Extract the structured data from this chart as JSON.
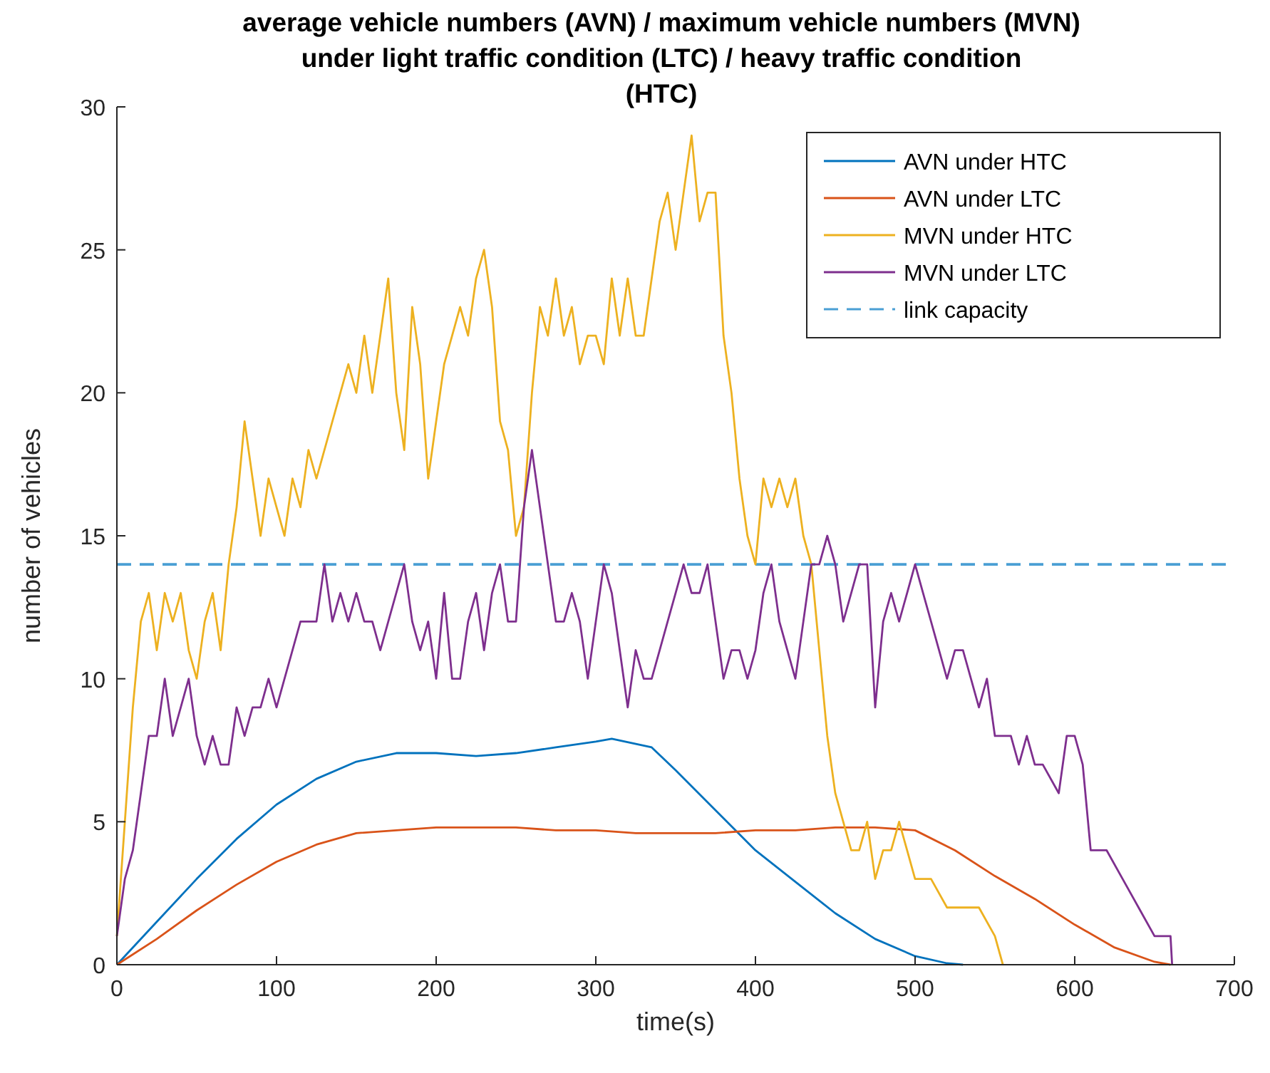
{
  "chart_data": {
    "type": "line",
    "title": "average vehicle numbers (AVN) / maximum vehicle numbers (MVN) under light traffic condition (LTC) / heavy traffic condition (HTC)",
    "xlabel": "time(s)",
    "ylabel": "number of vehicles",
    "xlim": [
      0,
      700
    ],
    "xticks": [
      0,
      100,
      200,
      300,
      400,
      500,
      600,
      700
    ],
    "ylim": [
      0,
      30
    ],
    "yticks": [
      0,
      5,
      10,
      15,
      20,
      25,
      30
    ],
    "grid": false,
    "legend": "top right",
    "line_style": "solid",
    "marker": "none",
    "ref_lines": [
      {
        "axis": "y",
        "value": 14,
        "label": "link capacity",
        "color": "#4a9fd4",
        "line_style": "dashed"
      }
    ],
    "series": [
      {
        "name": "AVN under HTC",
        "color": "#0072bd",
        "x": [
          0,
          25,
          50,
          75,
          100,
          125,
          150,
          175,
          200,
          225,
          250,
          275,
          300,
          310,
          335,
          350,
          375,
          400,
          425,
          450,
          475,
          500,
          520,
          530
        ],
        "values": [
          0,
          1.5,
          3,
          4.4,
          5.6,
          6.5,
          7.1,
          7.4,
          7.4,
          7.3,
          7.4,
          7.6,
          7.8,
          7.9,
          7.6,
          6.8,
          5.4,
          4,
          2.9,
          1.8,
          0.9,
          0.3,
          0.05,
          0
        ]
      },
      {
        "name": "AVN under LTC",
        "color": "#d95319",
        "x": [
          0,
          25,
          50,
          75,
          100,
          125,
          150,
          175,
          200,
          225,
          250,
          275,
          300,
          325,
          350,
          375,
          400,
          425,
          450,
          475,
          500,
          525,
          550,
          575,
          600,
          625,
          650,
          660
        ],
        "values": [
          0,
          0.9,
          1.9,
          2.8,
          3.6,
          4.2,
          4.6,
          4.7,
          4.8,
          4.8,
          4.8,
          4.7,
          4.7,
          4.6,
          4.6,
          4.6,
          4.7,
          4.7,
          4.8,
          4.8,
          4.7,
          4.0,
          3.1,
          2.3,
          1.4,
          0.6,
          0.1,
          0
        ]
      },
      {
        "name": "MVN under HTC",
        "color": "#edb120",
        "x": [
          0,
          5,
          10,
          15,
          20,
          25,
          30,
          35,
          40,
          45,
          50,
          55,
          60,
          65,
          70,
          75,
          80,
          85,
          90,
          95,
          100,
          105,
          110,
          115,
          120,
          125,
          130,
          135,
          140,
          145,
          150,
          155,
          160,
          165,
          170,
          175,
          180,
          185,
          190,
          195,
          200,
          205,
          210,
          215,
          220,
          225,
          230,
          235,
          240,
          245,
          250,
          255,
          260,
          265,
          270,
          275,
          280,
          285,
          290,
          295,
          300,
          305,
          310,
          315,
          320,
          325,
          330,
          335,
          340,
          345,
          350,
          355,
          360,
          365,
          370,
          375,
          380,
          385,
          390,
          395,
          400,
          405,
          410,
          415,
          420,
          425,
          430,
          435,
          440,
          445,
          450,
          455,
          460,
          465,
          470,
          475,
          480,
          485,
          490,
          495,
          500,
          505,
          510,
          520,
          530,
          540,
          550,
          555
        ],
        "values": [
          1,
          5,
          9,
          12,
          13,
          11,
          13,
          12,
          13,
          11,
          10,
          12,
          13,
          11,
          14,
          16,
          19,
          17,
          15,
          17,
          16,
          15,
          17,
          16,
          18,
          17,
          18,
          19,
          20,
          21,
          20,
          22,
          20,
          22,
          24,
          20,
          18,
          23,
          21,
          17,
          19,
          21,
          22,
          23,
          22,
          24,
          25,
          23,
          19,
          18,
          15,
          16,
          20,
          23,
          22,
          24,
          22,
          23,
          21,
          22,
          22,
          21,
          24,
          22,
          24,
          22,
          22,
          24,
          26,
          27,
          25,
          27,
          29,
          26,
          27,
          27,
          22,
          20,
          17,
          15,
          14,
          17,
          16,
          17,
          16,
          17,
          15,
          14,
          11,
          8,
          6,
          5,
          4,
          4,
          5,
          3,
          4,
          4,
          5,
          4,
          3,
          3,
          3,
          2,
          2,
          2,
          1,
          0
        ]
      },
      {
        "name": "MVN under LTC",
        "color": "#7e2f8e",
        "x": [
          0,
          5,
          10,
          15,
          20,
          25,
          30,
          35,
          40,
          45,
          50,
          55,
          60,
          65,
          70,
          75,
          80,
          85,
          90,
          95,
          100,
          105,
          110,
          115,
          120,
          125,
          130,
          135,
          140,
          145,
          150,
          155,
          160,
          165,
          170,
          175,
          180,
          185,
          190,
          195,
          200,
          205,
          210,
          215,
          220,
          225,
          230,
          235,
          240,
          245,
          250,
          255,
          260,
          265,
          270,
          275,
          280,
          285,
          290,
          295,
          300,
          305,
          310,
          315,
          320,
          325,
          330,
          335,
          340,
          345,
          350,
          355,
          360,
          365,
          370,
          375,
          380,
          385,
          390,
          395,
          400,
          405,
          410,
          415,
          420,
          425,
          430,
          435,
          440,
          445,
          450,
          455,
          460,
          465,
          470,
          475,
          480,
          485,
          490,
          495,
          500,
          505,
          510,
          520,
          525,
          530,
          535,
          540,
          545,
          550,
          560,
          565,
          570,
          575,
          580,
          590,
          595,
          600,
          605,
          610,
          620,
          630,
          640,
          650,
          660,
          661
        ],
        "values": [
          1,
          3,
          4,
          6,
          8,
          8,
          10,
          8,
          9,
          10,
          8,
          7,
          8,
          7,
          7,
          9,
          8,
          9,
          9,
          10,
          9,
          10,
          11,
          12,
          12,
          12,
          14,
          12,
          13,
          12,
          13,
          12,
          12,
          11,
          12,
          13,
          14,
          12,
          11,
          12,
          10,
          13,
          10,
          10,
          12,
          13,
          11,
          13,
          14,
          12,
          12,
          16,
          18,
          16,
          14,
          12,
          12,
          13,
          12,
          10,
          12,
          14,
          13,
          11,
          9,
          11,
          10,
          10,
          11,
          12,
          13,
          14,
          13,
          13,
          14,
          12,
          10,
          11,
          11,
          10,
          11,
          13,
          14,
          12,
          11,
          10,
          12,
          14,
          14,
          15,
          14,
          12,
          13,
          14,
          14,
          9,
          12,
          13,
          12,
          13,
          14,
          13,
          12,
          10,
          11,
          11,
          10,
          9,
          10,
          8,
          8,
          7,
          8,
          7,
          7,
          6,
          8,
          8,
          7,
          4,
          4,
          3,
          2,
          1,
          1,
          0
        ]
      }
    ]
  }
}
